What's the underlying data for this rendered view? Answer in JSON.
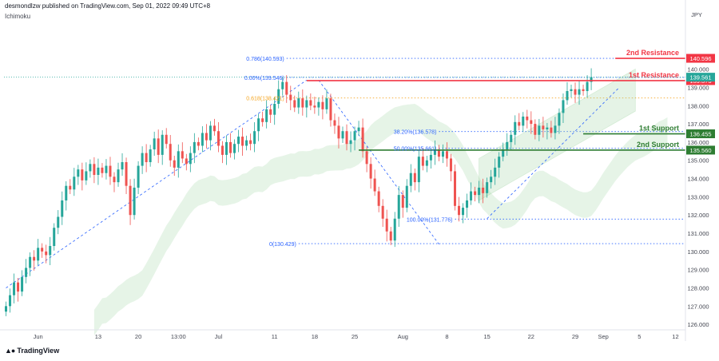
{
  "header": {
    "meta": "desmondlzw published on TradingView.com, Sep 01, 2022 09:49 UTC+8",
    "indicator": "Ichimoku"
  },
  "footer": {
    "brand": "TradingView"
  },
  "colors": {
    "up": "#26a69a",
    "down": "#ef5350",
    "fib": "#2962ff",
    "resistance": "#f23645",
    "support": "#2e7d32",
    "golden": "#f5a623"
  },
  "chart_data": {
    "type": "candlestick",
    "currency_label": "JPY",
    "ylim": [
      125.7,
      142.7
    ],
    "grid": false,
    "y_ticks": [
      126,
      127,
      128,
      129,
      130,
      131,
      132,
      133,
      134,
      135,
      136,
      137,
      138,
      139,
      140
    ],
    "x_ticks": [
      {
        "i": 8,
        "label": "Jun"
      },
      {
        "i": 23,
        "label": "13"
      },
      {
        "i": 33,
        "label": "20"
      },
      {
        "i": 43,
        "label": "13:00"
      },
      {
        "i": 53,
        "label": "Jul"
      },
      {
        "i": 67,
        "label": "11"
      },
      {
        "i": 77,
        "label": "18"
      },
      {
        "i": 87,
        "label": "25"
      },
      {
        "i": 99,
        "label": "Aug"
      },
      {
        "i": 110,
        "label": "8"
      },
      {
        "i": 120,
        "label": "15"
      },
      {
        "i": 131,
        "label": "22"
      },
      {
        "i": 142,
        "label": "29"
      },
      {
        "i": 149,
        "label": "Sep"
      },
      {
        "i": 158,
        "label": "5"
      },
      {
        "i": 167,
        "label": "12"
      }
    ],
    "closes": [
      127.0,
      127.6,
      128.3,
      127.8,
      128.6,
      129.1,
      129.7,
      129.5,
      130.2,
      130.0,
      129.8,
      130.3,
      131.3,
      131.9,
      132.8,
      133.6,
      133.4,
      134.1,
      134.5,
      133.9,
      134.4,
      134.8,
      134.2,
      134.6,
      134.3,
      134.7,
      134.1,
      133.8,
      134.5,
      134.9,
      133.6,
      132.0,
      133.5,
      134.7,
      135.4,
      134.9,
      135.6,
      136.2,
      135.3,
      136.4,
      135.9,
      135.0,
      134.6,
      135.5,
      135.1,
      134.8,
      135.4,
      136.0,
      135.8,
      136.5,
      136.1,
      136.9,
      136.6,
      135.8,
      135.3,
      136.0,
      135.4,
      135.9,
      136.3,
      135.8,
      136.1,
      135.9,
      136.6,
      137.3,
      137.1,
      137.8,
      137.5,
      138.1,
      138.9,
      139.3,
      138.6,
      138.3,
      137.9,
      138.4,
      137.9,
      138.3,
      138.0,
      137.9,
      138.2,
      137.8,
      138.4,
      137.2,
      136.9,
      136.2,
      136.6,
      135.9,
      136.1,
      136.6,
      136.8,
      135.5,
      134.8,
      134.0,
      133.3,
      132.5,
      131.8,
      131.1,
      130.6,
      131.8,
      133.1,
      132.4,
      133.6,
      134.3,
      133.8,
      135.2,
      134.7,
      135.0,
      135.3,
      135.6,
      135.2,
      135.5,
      135.1,
      134.4,
      132.5,
      132.0,
      132.4,
      132.8,
      133.3,
      133.1,
      133.5,
      133.2,
      133.8,
      134.1,
      134.6,
      135.2,
      135.6,
      136.0,
      136.4,
      137.1,
      136.9,
      137.4,
      137.2,
      137.0,
      136.4,
      136.9,
      136.7,
      136.8,
      136.5,
      136.9,
      137.6,
      138.3,
      138.8,
      138.9,
      138.6,
      138.9,
      138.8,
      139.3,
      139.56
    ],
    "last_price": 139.561,
    "fibonacci": [
      {
        "label": "0.786(140.593)",
        "price": 140.593,
        "color": "#2962ff"
      },
      {
        "label": "0.00%(139.546)",
        "price": 139.546,
        "color": "#2962ff"
      },
      {
        "label": "0.618(138.421)",
        "price": 138.421,
        "color": "#f5a623"
      },
      {
        "label": "38.20%(136.578)",
        "price": 136.578,
        "color": "#2962ff"
      },
      {
        "label": "50.00%(135.661)",
        "price": 135.661,
        "color": "#2962ff"
      },
      {
        "label": "100.00%(131.776)",
        "price": 131.776,
        "color": "#2962ff"
      },
      {
        "label": "0(130.429)",
        "price": 130.429,
        "color": "#2962ff"
      }
    ],
    "levels": [
      {
        "name": "2nd Resistance",
        "price": 140.596,
        "tag": "140.596",
        "color": "#f23645"
      },
      {
        "name": "1st Resistance",
        "price": 139.373,
        "tag": "139.373",
        "color": "#f23645"
      },
      {
        "name": "1st Support",
        "price": 136.455,
        "tag": "136.455",
        "color": "#2e7d32"
      },
      {
        "name": "2nd Support",
        "price": 135.56,
        "tag": "135.560",
        "color": "#2e7d32"
      }
    ],
    "last_price_tag": "139.561"
  }
}
